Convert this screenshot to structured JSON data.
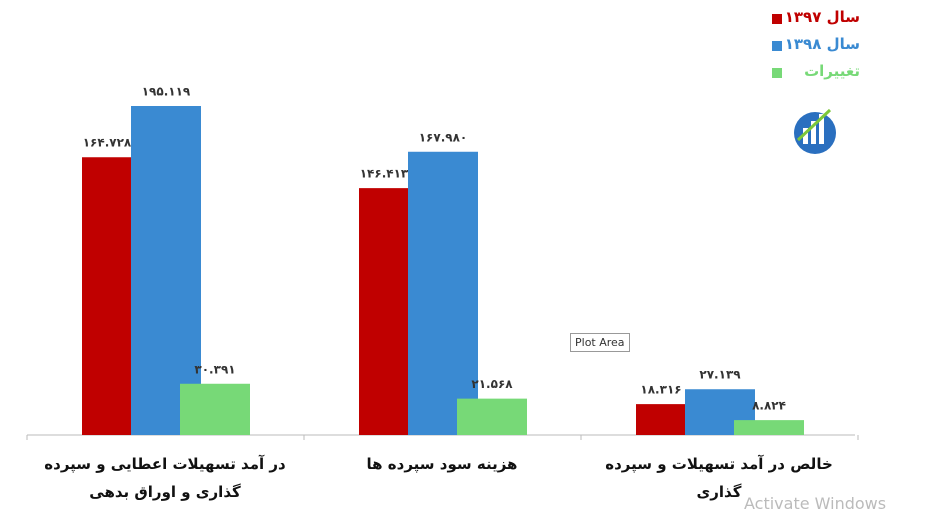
{
  "chart_data": {
    "type": "bar",
    "categories": [
      "در آمد تسهیلات اعطایی و سپرده گذاری و اوراق بدهی",
      "هزینه سود سپرده ها",
      "خالص در آمد تسهیلات و سپرده گذاری"
    ],
    "series": [
      {
        "name": "سال ۱۳۹۷",
        "color": "#c00000",
        "values": [
          164728,
          146413,
          18316
        ],
        "value_labels": [
          "۱۶۴.۷۲۸",
          "۱۴۶.۴۱۳",
          "۱۸.۳۱۶"
        ]
      },
      {
        "name": "سال ۱۳۹۸",
        "color": "#3a8ad2",
        "values": [
          195119,
          167980,
          27139
        ],
        "value_labels": [
          "۱۹۵.۱۱۹",
          "۱۶۷.۹۸۰",
          "۲۷.۱۳۹"
        ]
      },
      {
        "name": "تغییرات",
        "color": "#77d977",
        "values": [
          30391,
          21568,
          8824
        ],
        "value_labels": [
          "۳۰.۳۹۱",
          "۲۱.۵۶۸",
          "۸.۸۲۴"
        ]
      }
    ],
    "legend": "top-right",
    "tooltip": "Plot Area",
    "watermark": "Activate Windows"
  }
}
